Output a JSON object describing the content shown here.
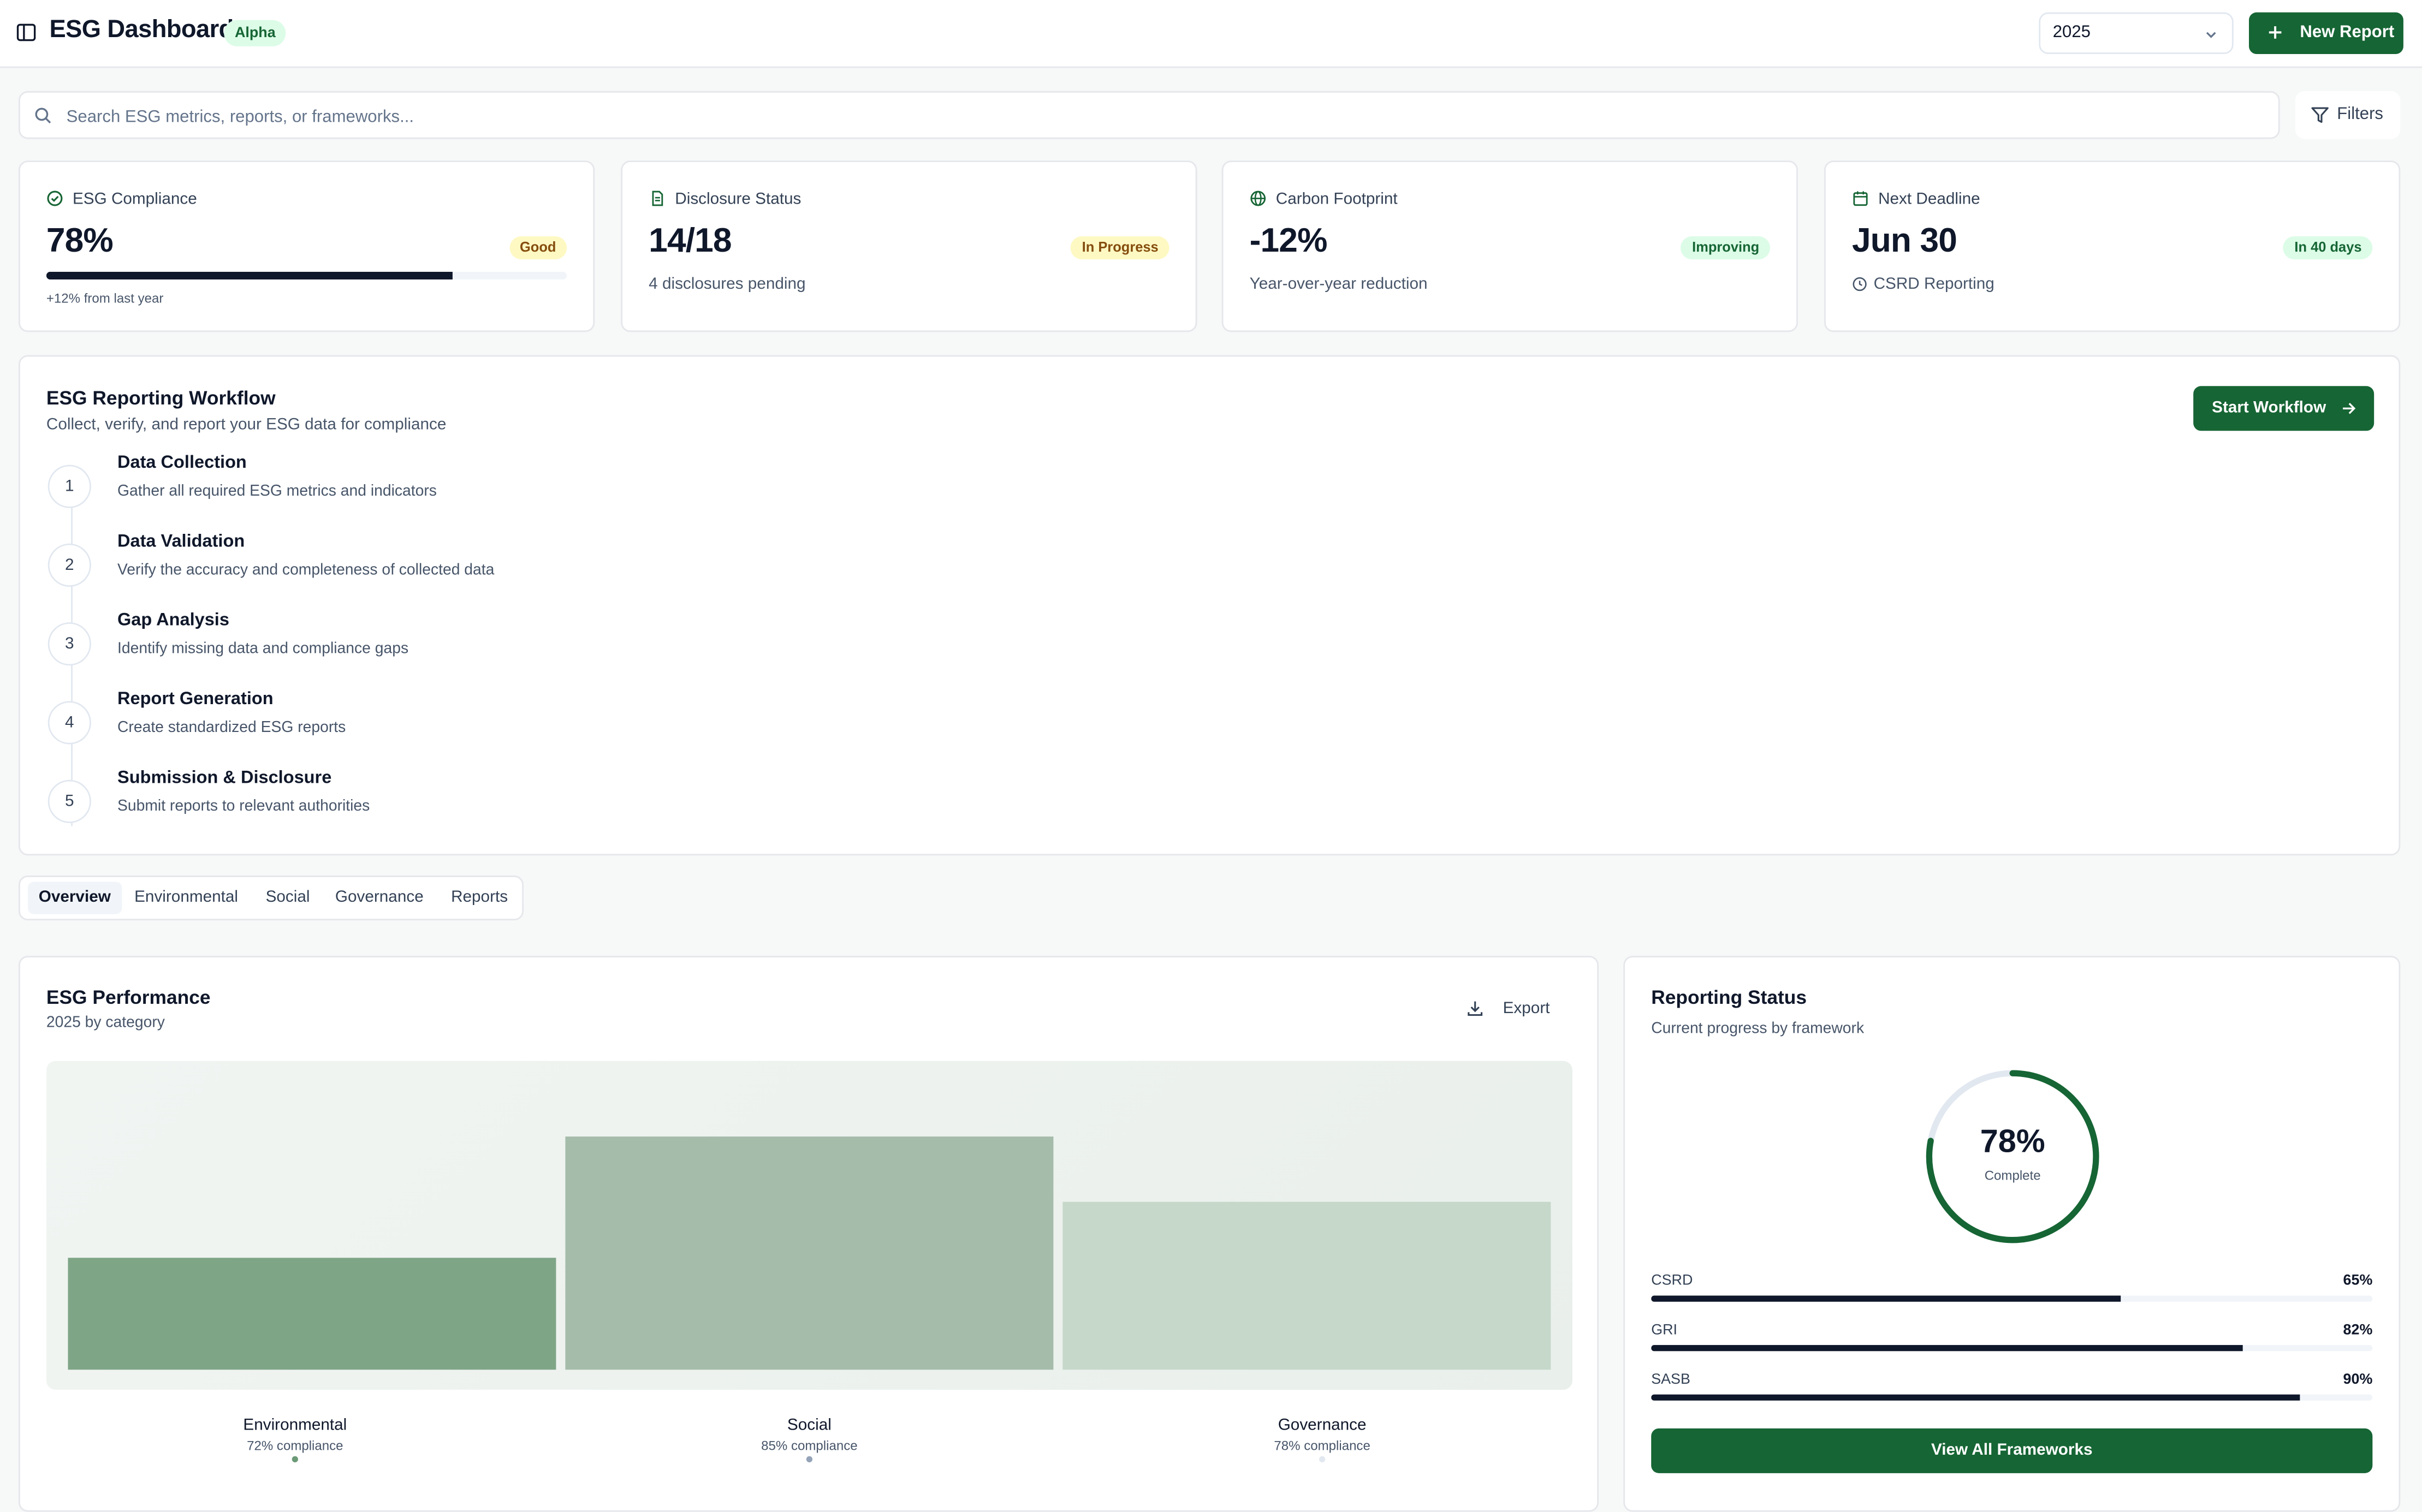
{
  "header": {
    "title": "ESG Dashboard",
    "badge": "Alpha",
    "year": "2025",
    "new_report_label": "New Report"
  },
  "search": {
    "placeholder": "Search ESG metrics, reports, or frameworks...",
    "value": "",
    "filters_label": "Filters"
  },
  "stats": [
    {
      "label": "ESG Compliance",
      "value": "78%",
      "badge": "Good",
      "progress": 78,
      "note": "+12% from last year",
      "icon": "check-circle-icon"
    },
    {
      "label": "Disclosure Status",
      "value": "14/18",
      "badge": "In Progress",
      "note": "4 disclosures pending",
      "icon": "document-icon"
    },
    {
      "label": "Carbon Footprint",
      "value": "-12%",
      "badge": "Improving",
      "note": "Year-over-year reduction",
      "icon": "globe-icon"
    },
    {
      "label": "Next Deadline",
      "value": "Jun 30",
      "badge": "In 40 days",
      "note": "CSRD Reporting",
      "icon": "calendar-icon"
    }
  ],
  "workflow": {
    "title": "ESG Reporting Workflow",
    "subtitle": "Collect, verify, and report your ESG data for compliance",
    "button": "Start Workflow",
    "steps": [
      {
        "num": "1",
        "name": "Data Collection",
        "desc": "Gather all required ESG metrics and indicators"
      },
      {
        "num": "2",
        "name": "Data Validation",
        "desc": "Verify the accuracy and completeness of collected data"
      },
      {
        "num": "3",
        "name": "Gap Analysis",
        "desc": "Identify missing data and compliance gaps"
      },
      {
        "num": "4",
        "name": "Report Generation",
        "desc": "Create standardized ESG reports"
      },
      {
        "num": "5",
        "name": "Submission & Disclosure",
        "desc": "Submit reports to relevant authorities"
      }
    ]
  },
  "tabs": [
    "Overview",
    "Environmental",
    "Social",
    "Governance",
    "Reports"
  ],
  "performance": {
    "title": "ESG Performance",
    "subtitle": "2025 by category",
    "export_label": "Export"
  },
  "chart_data": {
    "type": "bar",
    "categories": [
      "Environmental",
      "Social",
      "Governance"
    ],
    "values": [
      72,
      85,
      78
    ],
    "labels": [
      "72% compliance",
      "85% compliance",
      "78% compliance"
    ],
    "colors": [
      "#7fa587",
      "#a5bcab",
      "#c6d8ca"
    ],
    "ylim": [
      0,
      100
    ],
    "title": "ESG Performance"
  },
  "reporting": {
    "title": "Reporting Status",
    "subtitle": "Current progress by framework",
    "percent": "78%",
    "percent_value": 78,
    "complete_label": "Complete",
    "frameworks": [
      {
        "name": "CSRD",
        "pct": "65%",
        "value": 65
      },
      {
        "name": "GRI",
        "pct": "82%",
        "value": 82
      },
      {
        "name": "SASB",
        "pct": "90%",
        "value": 90
      }
    ],
    "view_all": "View All Frameworks"
  },
  "colors": {
    "brand": "#166534",
    "dark": "#0f172a"
  }
}
